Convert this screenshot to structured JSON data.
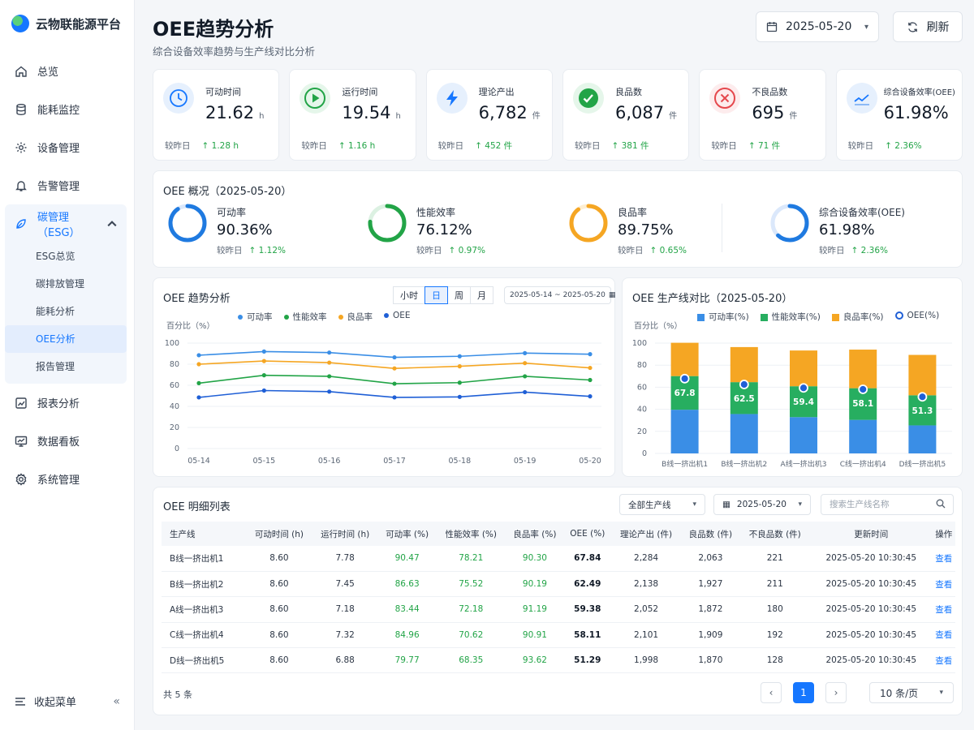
{
  "app": {
    "name": "云物联能源平台"
  },
  "sidebar": {
    "items": [
      {
        "label": "总览",
        "icon": "home-icon"
      },
      {
        "label": "能耗监控",
        "icon": "database-icon"
      },
      {
        "label": "设备管理",
        "icon": "gear-icon"
      },
      {
        "label": "告警管理",
        "icon": "bell-icon"
      }
    ],
    "group": {
      "label": "碳管理（ESG）",
      "icon": "leaf-icon",
      "children": [
        "ESG总览",
        "碳排放管理",
        "能耗分析",
        "OEE分析",
        "报告管理"
      ],
      "active": "OEE分析"
    },
    "items_after": [
      {
        "label": "报表分析",
        "icon": "chart-icon"
      },
      {
        "label": "数据看板",
        "icon": "monitor-icon"
      },
      {
        "label": "系统管理",
        "icon": "settings-icon"
      }
    ],
    "collapse_label": "收起菜单",
    "collapse_chevron": "«"
  },
  "header": {
    "title": "OEE趋势分析",
    "subtitle": "综合设备效率趋势与生产线对比分析",
    "date": "2025-05-20",
    "refresh_label": "刷新"
  },
  "kpis": [
    {
      "label": "可动时间",
      "value": "21.62",
      "unit": "h",
      "compare": "较昨日",
      "delta": "↑ 1.28 h",
      "color": "#1677ff",
      "icon": "clock-icon"
    },
    {
      "label": "运行时间",
      "value": "19.54",
      "unit": "h",
      "compare": "较昨日",
      "delta": "↑ 1.16 h",
      "color": "#22a447",
      "icon": "play-icon"
    },
    {
      "label": "理论产出",
      "value": "6,782",
      "unit": "件",
      "compare": "较昨日",
      "delta": "↑ 452 件",
      "color": "#1677ff",
      "icon": "lightning-icon"
    },
    {
      "label": "良品数",
      "value": "6,087",
      "unit": "件",
      "compare": "较昨日",
      "delta": "↑ 381 件",
      "color": "#22a447",
      "icon": "check-icon"
    },
    {
      "label": "不良品数",
      "value": "695",
      "unit": "件",
      "compare": "较昨日",
      "delta": "↑ 71 件",
      "color": "#e5484d",
      "icon": "x-icon"
    },
    {
      "label": "综合设备效率(OEE)",
      "value": "61.98%",
      "unit": "",
      "compare": "较昨日",
      "delta": "↑ 2.36%",
      "color": "#1677ff",
      "icon": "trend-icon"
    }
  ],
  "overview": {
    "title": "OEE 概况（2025-05-20）",
    "items": [
      {
        "label": "可动率",
        "value": "90.36%",
        "pct": 90.36,
        "compare": "较昨日",
        "delta": "↑ 1.12%",
        "color": "#1f7ae0"
      },
      {
        "label": "性能效率",
        "value": "76.12%",
        "pct": 76.12,
        "compare": "较昨日",
        "delta": "↑ 0.97%",
        "color": "#22a447"
      },
      {
        "label": "良品率",
        "value": "89.75%",
        "pct": 89.75,
        "compare": "较昨日",
        "delta": "↑ 0.65%",
        "color": "#f5a623"
      },
      {
        "label": "综合设备效率(OEE)",
        "value": "61.98%",
        "pct": 61.98,
        "compare": "较昨日",
        "delta": "↑ 2.36%",
        "color": "#1f7ae0"
      }
    ]
  },
  "trend": {
    "title": "OEE 趋势分析",
    "periods": [
      "小时",
      "日",
      "周",
      "月"
    ],
    "active_period": "日",
    "range": "2025-05-14 ~ 2025-05-20"
  },
  "bars": {
    "title": "OEE 生产线对比（2025-05-20）"
  },
  "chart_data": [
    {
      "type": "line",
      "ylabel": "百分比（%）",
      "ylim": [
        0,
        100
      ],
      "yticks": [
        0,
        20,
        40,
        60,
        80,
        100
      ],
      "x": [
        "05-14",
        "05-15",
        "05-16",
        "05-17",
        "05-18",
        "05-19",
        "05-20"
      ],
      "grid": true,
      "legend": "top",
      "series": [
        {
          "name": "可动率",
          "color": "#3a8ee6",
          "values": [
            88.5,
            92,
            91,
            86.5,
            87.5,
            90.5,
            89.5
          ]
        },
        {
          "name": "性能效率",
          "color": "#22a447",
          "values": [
            62,
            69.5,
            68.5,
            61.5,
            62.5,
            68.5,
            65
          ]
        },
        {
          "name": "良品率",
          "color": "#f5a623",
          "values": [
            80,
            83,
            81.5,
            76,
            78,
            81,
            76.5
          ]
        },
        {
          "name": "OEE",
          "color": "#1f5fd6",
          "values": [
            48.5,
            55,
            54,
            48.5,
            49,
            53.5,
            49.5
          ]
        }
      ]
    },
    {
      "type": "bar",
      "stacked": true,
      "ylabel": "百分比（%）",
      "ylim": [
        0,
        100
      ],
      "yticks": [
        0,
        20,
        40,
        60,
        80,
        100
      ],
      "categories": [
        "B线一挤出机1",
        "B线一挤出机2",
        "A线一挤出机3",
        "C线一挤出机4",
        "D线一挤出机5"
      ],
      "legend": "top",
      "series": [
        {
          "name": "可动率(%)",
          "color": "#3a8ee6",
          "values": [
            39.6,
            35.7,
            32.9,
            30.4,
            25.4
          ]
        },
        {
          "name": "性能效率(%)",
          "color": "#27ae60",
          "values": [
            30.5,
            28.9,
            28.0,
            28.7,
            27.3
          ]
        },
        {
          "name": "良品率(%)",
          "color": "#f5a623",
          "values": [
            30.2,
            31.8,
            32.4,
            35.0,
            36.6
          ]
        },
        {
          "name": "OEE(%)",
          "type": "marker",
          "color": "#1f5fd6",
          "values": [
            67.8,
            62.5,
            59.4,
            58.1,
            51.3
          ]
        }
      ]
    }
  ],
  "detail": {
    "title": "OEE 明细列表",
    "filter_line": "全部生产线",
    "filter_date": "2025-05-20",
    "search_placeholder": "搜索生产线名称",
    "columns": [
      "生产线",
      "可动时间 (h)",
      "运行时间 (h)",
      "可动率 (%)",
      "性能效率 (%)",
      "良品率 (%)",
      "OEE (%)",
      "理论产出 (件)",
      "良品数 (件)",
      "不良品数 (件)",
      "更新时间",
      "操作"
    ],
    "rows": [
      [
        "B线一挤出机1",
        "8.60",
        "7.78",
        "90.47",
        "78.21",
        "90.30",
        "67.84",
        "2,284",
        "2,063",
        "221",
        "2025-05-20 10:30:45",
        "查看"
      ],
      [
        "B线一挤出机2",
        "8.60",
        "7.45",
        "86.63",
        "75.52",
        "90.19",
        "62.49",
        "2,138",
        "1,927",
        "211",
        "2025-05-20 10:30:45",
        "查看"
      ],
      [
        "A线一挤出机3",
        "8.60",
        "7.18",
        "83.44",
        "72.18",
        "91.19",
        "59.38",
        "2,052",
        "1,872",
        "180",
        "2025-05-20 10:30:45",
        "查看"
      ],
      [
        "C线一挤出机4",
        "8.60",
        "7.32",
        "84.96",
        "70.62",
        "90.91",
        "58.11",
        "2,101",
        "1,909",
        "192",
        "2025-05-20 10:30:45",
        "查看"
      ],
      [
        "D线一挤出机5",
        "8.60",
        "6.88",
        "79.77",
        "68.35",
        "93.62",
        "51.29",
        "1,998",
        "1,870",
        "128",
        "2025-05-20 10:30:45",
        "查看"
      ]
    ],
    "total": "共 5 条",
    "current_page": "1",
    "prev": "‹",
    "next": "›",
    "page_size": "10 条/页"
  }
}
